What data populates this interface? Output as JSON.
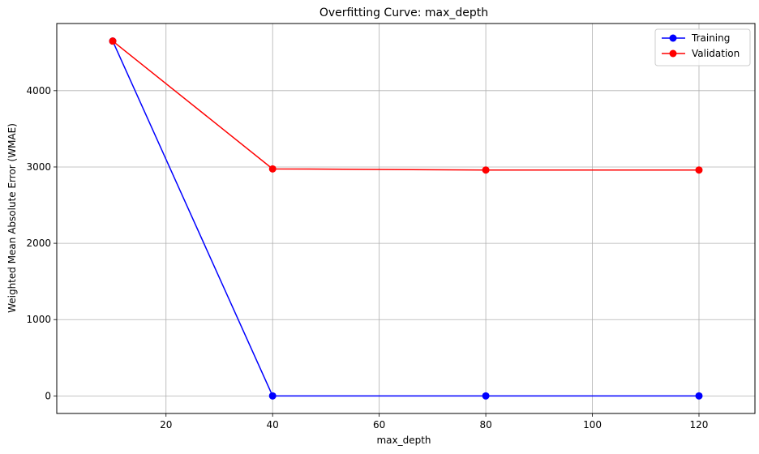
{
  "chart_data": {
    "type": "line",
    "title": "Overfitting Curve: max_depth",
    "xlabel": "max_depth",
    "ylabel": "Weighted Mean Absolute Error (WMAE)",
    "x": [
      10,
      40,
      80,
      120
    ],
    "series": [
      {
        "name": "Training",
        "color": "#0000ff",
        "values": [
          4650,
          0,
          0,
          0
        ]
      },
      {
        "name": "Validation",
        "color": "#ff0000",
        "values": [
          4650,
          2975,
          2960,
          2960
        ]
      }
    ],
    "xlim": [
      -0.5,
      130.5
    ],
    "ylim": [
      -230,
      4880
    ],
    "xticks": [
      20,
      40,
      60,
      80,
      100,
      120
    ],
    "yticks": [
      0,
      1000,
      2000,
      3000,
      4000
    ],
    "grid": true,
    "legend_position": "top-right"
  }
}
